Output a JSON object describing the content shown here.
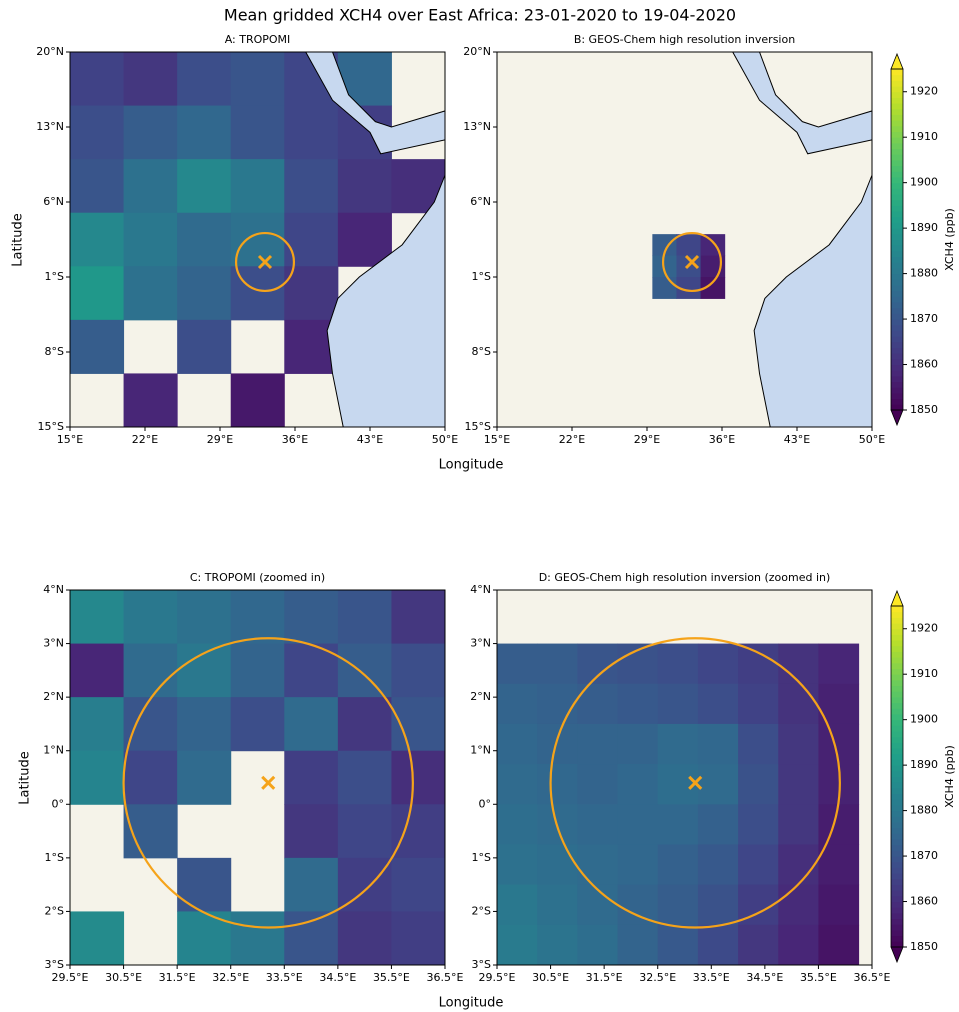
{
  "title": "Mean gridded XCH4 over East Africa: 23-01-2020 to 19-04-2020",
  "xlabel": "Longitude",
  "ylabel": "Latitude",
  "colorbar": {
    "label": "XCH4 (ppb)",
    "lim": [
      1850,
      1925
    ],
    "ticks": [
      1850,
      1860,
      1870,
      1880,
      1890,
      1900,
      1910,
      1920
    ],
    "colormap": "viridis"
  },
  "chart_data": [
    {
      "type": "heatmap",
      "title": "A: TROPOMI",
      "xlim": [
        15,
        50
      ],
      "ylim": [
        -15,
        20
      ],
      "xticks": [
        {
          "value": 15,
          "label": "15°E"
        },
        {
          "value": 22,
          "label": "22°E"
        },
        {
          "value": 29,
          "label": "29°E"
        },
        {
          "value": 36,
          "label": "36°E"
        },
        {
          "value": 43,
          "label": "43°E"
        },
        {
          "value": 50,
          "label": "50°E"
        }
      ],
      "yticks": [
        {
          "value": -15,
          "label": "15°S"
        },
        {
          "value": -8,
          "label": "8°S"
        },
        {
          "value": -1,
          "label": "1°S"
        },
        {
          "value": 6,
          "label": "6°N"
        },
        {
          "value": 13,
          "label": "13°N"
        },
        {
          "value": 20,
          "label": "20°N"
        }
      ],
      "lon_edges": [
        15,
        20,
        25,
        30,
        35,
        40,
        45,
        50
      ],
      "lat_edges": [
        20,
        15,
        10,
        5,
        0,
        -5,
        -10,
        -15
      ],
      "values": [
        [
          1865,
          1862,
          1868,
          1870,
          1866,
          1875,
          null
        ],
        [
          1868,
          1872,
          1875,
          1870,
          1866,
          1864,
          null
        ],
        [
          1870,
          1878,
          1885,
          1880,
          1868,
          1862,
          1860
        ],
        [
          1885,
          1880,
          1876,
          1878,
          1866,
          1858,
          null
        ],
        [
          1890,
          1878,
          1874,
          1868,
          1862,
          null,
          null
        ],
        [
          1872,
          null,
          1868,
          null,
          1858,
          null,
          null
        ],
        [
          null,
          1858,
          null,
          1855,
          null,
          null,
          null
        ]
      ],
      "marker": [
        33.2,
        0.4
      ],
      "circle_radius": 2.7
    },
    {
      "type": "heatmap",
      "title": "B: GEOS-Chem high resolution inversion",
      "xlim": [
        15,
        50
      ],
      "ylim": [
        -15,
        20
      ],
      "xticks": [
        {
          "value": 15,
          "label": "15°E"
        },
        {
          "value": 22,
          "label": "22°E"
        },
        {
          "value": 29,
          "label": "29°E"
        },
        {
          "value": 36,
          "label": "36°E"
        },
        {
          "value": 43,
          "label": "43°E"
        },
        {
          "value": 50,
          "label": "50°E"
        }
      ],
      "yticks": [
        {
          "value": -15,
          "label": "15°S"
        },
        {
          "value": -8,
          "label": "8°S"
        },
        {
          "value": -1,
          "label": "1°S"
        },
        {
          "value": 6,
          "label": "6°N"
        },
        {
          "value": 13,
          "label": "13°N"
        },
        {
          "value": 20,
          "label": "20°N"
        }
      ],
      "lon_edges": [
        29.5,
        31.75,
        34,
        36.25
      ],
      "lat_edges": [
        3,
        1,
        -1,
        -3
      ],
      "values": [
        [
          1872,
          1866,
          1858
        ],
        [
          1874,
          1868,
          1856
        ],
        [
          1872,
          1866,
          1854
        ]
      ],
      "marker": [
        33.2,
        0.4
      ],
      "circle_radius": 2.7
    },
    {
      "type": "heatmap",
      "title": "C: TROPOMI (zoomed in)",
      "xlim": [
        29.5,
        36.5
      ],
      "ylim": [
        -3,
        4
      ],
      "xticks": [
        {
          "value": 29.5,
          "label": "29.5°E"
        },
        {
          "value": 30.5,
          "label": "30.5°E"
        },
        {
          "value": 31.5,
          "label": "31.5°E"
        },
        {
          "value": 32.5,
          "label": "32.5°E"
        },
        {
          "value": 33.5,
          "label": "33.5°E"
        },
        {
          "value": 34.5,
          "label": "34.5°E"
        },
        {
          "value": 35.5,
          "label": "35.5°E"
        },
        {
          "value": 36.5,
          "label": "36.5°E"
        }
      ],
      "yticks": [
        {
          "value": -3,
          "label": "3°S"
        },
        {
          "value": -2,
          "label": "2°S"
        },
        {
          "value": -1,
          "label": "1°S"
        },
        {
          "value": 0,
          "label": "0°"
        },
        {
          "value": 1,
          "label": "1°N"
        },
        {
          "value": 2,
          "label": "2°N"
        },
        {
          "value": 3,
          "label": "3°N"
        },
        {
          "value": 4,
          "label": "4°N"
        }
      ],
      "lon_edges": [
        29.5,
        30.5,
        31.5,
        32.5,
        33.5,
        34.5,
        35.5,
        36.5
      ],
      "lat_edges": [
        4,
        3,
        2,
        1,
        0,
        -1,
        -2,
        -3
      ],
      "values": [
        [
          1885,
          1880,
          1878,
          1875,
          1872,
          1870,
          1862
        ],
        [
          1858,
          1876,
          1880,
          1874,
          1866,
          1872,
          1868
        ],
        [
          1882,
          1870,
          1874,
          1868,
          1876,
          1862,
          1870
        ],
        [
          1884,
          1866,
          1876,
          null,
          1864,
          1868,
          1860
        ],
        [
          null,
          1872,
          null,
          null,
          1862,
          1866,
          1864
        ],
        [
          null,
          null,
          1870,
          null,
          1876,
          1864,
          1866
        ],
        [
          1886,
          null,
          1884,
          1880,
          1870,
          1862,
          1864
        ]
      ],
      "marker": [
        33.2,
        0.4
      ],
      "circle_radius": 2.7
    },
    {
      "type": "heatmap",
      "title": "D: GEOS-Chem high resolution inversion (zoomed in)",
      "xlim": [
        29.5,
        36.5
      ],
      "ylim": [
        -3,
        4
      ],
      "xticks": [
        {
          "value": 29.5,
          "label": "29.5°E"
        },
        {
          "value": 30.5,
          "label": "30.5°E"
        },
        {
          "value": 31.5,
          "label": "31.5°E"
        },
        {
          "value": 32.5,
          "label": "32.5°E"
        },
        {
          "value": 33.5,
          "label": "33.5°E"
        },
        {
          "value": 34.5,
          "label": "34.5°E"
        },
        {
          "value": 35.5,
          "label": "35.5°E"
        },
        {
          "value": 36.5,
          "label": "36.5°E"
        }
      ],
      "yticks": [
        {
          "value": -3,
          "label": "3°S"
        },
        {
          "value": -2,
          "label": "2°S"
        },
        {
          "value": -1,
          "label": "1°S"
        },
        {
          "value": 0,
          "label": "0°"
        },
        {
          "value": 1,
          "label": "1°N"
        },
        {
          "value": 2,
          "label": "2°N"
        },
        {
          "value": 3,
          "label": "3°N"
        },
        {
          "value": 4,
          "label": "4°N"
        }
      ],
      "lon_edges": [
        29.5,
        30.25,
        31,
        31.75,
        32.5,
        33.25,
        34,
        34.75,
        35.5,
        36.25
      ],
      "lat_edges": [
        3,
        2.25,
        1.5,
        0.75,
        0,
        -0.75,
        -1.5,
        -2.25,
        -3
      ],
      "values": [
        [
          1872,
          1872,
          1870,
          1869,
          1868,
          1866,
          1864,
          1861,
          1858
        ],
        [
          1874,
          1873,
          1872,
          1871,
          1870,
          1868,
          1865,
          1861,
          1857
        ],
        [
          1875,
          1874,
          1874,
          1874,
          1876,
          1875,
          1868,
          1862,
          1857
        ],
        [
          1876,
          1875,
          1874,
          1875,
          1877,
          1876,
          1869,
          1862,
          1857
        ],
        [
          1877,
          1876,
          1875,
          1875,
          1875,
          1873,
          1868,
          1862,
          1856
        ],
        [
          1878,
          1877,
          1876,
          1875,
          1873,
          1871,
          1866,
          1860,
          1856
        ],
        [
          1880,
          1878,
          1876,
          1874,
          1872,
          1869,
          1864,
          1859,
          1855
        ],
        [
          1881,
          1879,
          1877,
          1874,
          1871,
          1867,
          1862,
          1858,
          1854
        ]
      ],
      "marker": [
        33.2,
        0.4
      ],
      "circle_radius": 2.7
    }
  ]
}
